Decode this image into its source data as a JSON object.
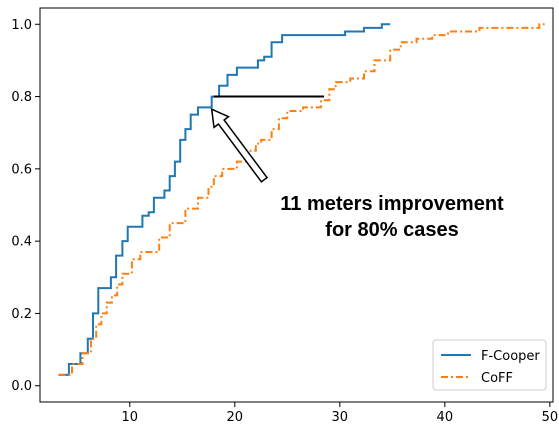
{
  "chart_data": {
    "type": "line",
    "title": "",
    "xlabel": "",
    "ylabel": "",
    "xlim": [
      0,
      50
    ],
    "ylim": [
      0,
      1.0
    ],
    "x_ticks": [
      10,
      20,
      30,
      40,
      50
    ],
    "x_tick_labels": [
      "10",
      "20",
      "30",
      "40",
      "50"
    ],
    "y_ticks": [
      0.0,
      0.2,
      0.4,
      0.6,
      0.8,
      1.0
    ],
    "y_tick_labels": [
      "0.0",
      "0.2",
      "0.4",
      "0.6",
      "0.8",
      "1.0"
    ],
    "grid": false,
    "legend_position": "bottom-right",
    "series": [
      {
        "name": "F-Cooper",
        "color": "#1f77b4",
        "style": "solid",
        "steps": [
          [
            3.2,
            0.03
          ],
          [
            4.2,
            0.06
          ],
          [
            5.3,
            0.09
          ],
          [
            6.0,
            0.13
          ],
          [
            6.5,
            0.2
          ],
          [
            7.0,
            0.27
          ],
          [
            8.2,
            0.3
          ],
          [
            8.7,
            0.36
          ],
          [
            9.3,
            0.4
          ],
          [
            9.8,
            0.44
          ],
          [
            11.2,
            0.47
          ],
          [
            11.8,
            0.48
          ],
          [
            12.3,
            0.52
          ],
          [
            13.3,
            0.54
          ],
          [
            13.8,
            0.58
          ],
          [
            14.3,
            0.62
          ],
          [
            14.8,
            0.68
          ],
          [
            15.3,
            0.71
          ],
          [
            15.8,
            0.75
          ],
          [
            16.5,
            0.77
          ],
          [
            17.8,
            0.8
          ],
          [
            18.5,
            0.83
          ],
          [
            19.3,
            0.86
          ],
          [
            20.2,
            0.88
          ],
          [
            22.2,
            0.9
          ],
          [
            22.8,
            0.91
          ],
          [
            23.5,
            0.95
          ],
          [
            24.5,
            0.97
          ],
          [
            30.5,
            0.98
          ],
          [
            32.3,
            0.99
          ],
          [
            34.0,
            1.0
          ],
          [
            34.8,
            1.0
          ]
        ]
      },
      {
        "name": "CoFF",
        "color": "#ff7f0e",
        "style": "dashdot",
        "steps": [
          [
            3.2,
            0.03
          ],
          [
            4.5,
            0.06
          ],
          [
            5.5,
            0.09
          ],
          [
            6.3,
            0.13
          ],
          [
            6.8,
            0.17
          ],
          [
            7.3,
            0.2
          ],
          [
            7.8,
            0.23
          ],
          [
            8.3,
            0.25
          ],
          [
            8.8,
            0.28
          ],
          [
            9.3,
            0.31
          ],
          [
            10.2,
            0.35
          ],
          [
            11.0,
            0.37
          ],
          [
            12.8,
            0.41
          ],
          [
            13.8,
            0.45
          ],
          [
            15.3,
            0.49
          ],
          [
            16.5,
            0.52
          ],
          [
            17.5,
            0.55
          ],
          [
            18.0,
            0.58
          ],
          [
            18.8,
            0.6
          ],
          [
            20.2,
            0.62
          ],
          [
            21.5,
            0.65
          ],
          [
            22.0,
            0.67
          ],
          [
            22.5,
            0.68
          ],
          [
            23.5,
            0.71
          ],
          [
            24.2,
            0.74
          ],
          [
            25.0,
            0.76
          ],
          [
            26.5,
            0.77
          ],
          [
            28.2,
            0.79
          ],
          [
            29.0,
            0.82
          ],
          [
            29.6,
            0.84
          ],
          [
            31.0,
            0.85
          ],
          [
            32.3,
            0.87
          ],
          [
            33.3,
            0.9
          ],
          [
            34.8,
            0.93
          ],
          [
            35.8,
            0.95
          ],
          [
            37.3,
            0.96
          ],
          [
            38.8,
            0.97
          ],
          [
            40.3,
            0.98
          ],
          [
            43.3,
            0.99
          ],
          [
            47.5,
            0.99
          ],
          [
            49.0,
            1.0
          ],
          [
            49.5,
            1.0
          ]
        ]
      }
    ],
    "reference_line": {
      "x1": 18.0,
      "x2": 28.5,
      "y": 0.8,
      "color": "#000000"
    },
    "annotation": {
      "lines": [
        "11 meters improvement",
        "for 80% cases"
      ],
      "arrow_tail": [
        22.8,
        0.57
      ],
      "arrow_head": [
        17.8,
        0.765
      ]
    }
  }
}
